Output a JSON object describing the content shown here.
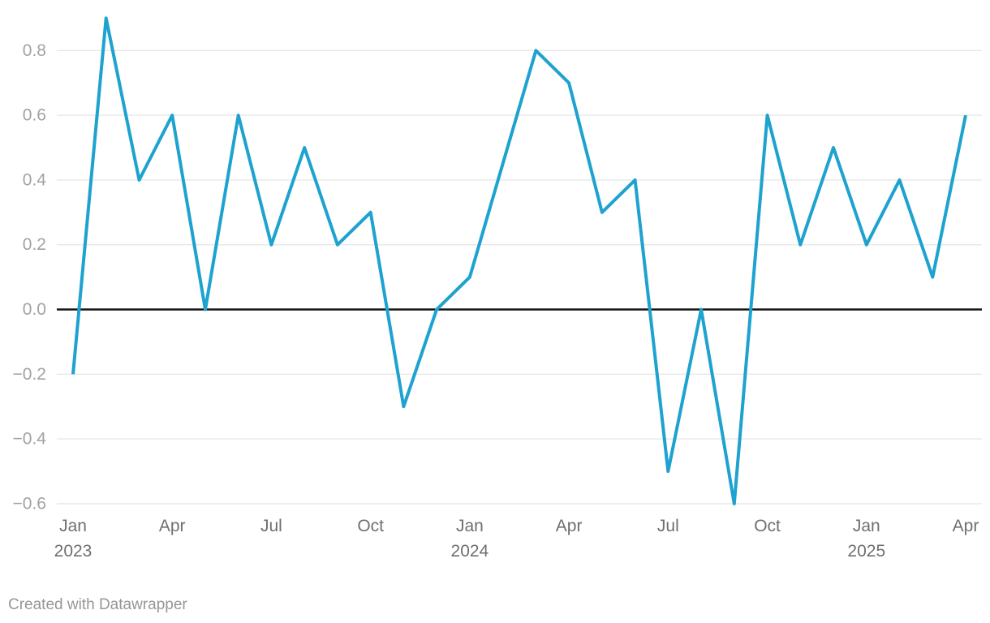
{
  "chart_data": {
    "type": "line",
    "x": [
      "Jan 2023",
      "Feb 2023",
      "Mar 2023",
      "Apr 2023",
      "May 2023",
      "Jun 2023",
      "Jul 2023",
      "Aug 2023",
      "Sep 2023",
      "Oct 2023",
      "Nov 2023",
      "Dec 2023",
      "Jan 2024",
      "Feb 2024",
      "Mar 2024",
      "Apr 2024",
      "May 2024",
      "Jun 2024",
      "Jul 2024",
      "Aug 2024",
      "Sep 2024",
      "Oct 2024",
      "Nov 2024",
      "Dec 2024",
      "Jan 2025",
      "Feb 2025",
      "Mar 2025",
      "Apr 2025"
    ],
    "series": [
      {
        "name": "value",
        "color": "#1ea2cf",
        "values": [
          -0.2,
          0.9,
          0.4,
          0.6,
          0.0,
          0.6,
          0.2,
          0.5,
          0.2,
          0.3,
          -0.3,
          0.0,
          0.1,
          0.45,
          0.8,
          0.7,
          0.3,
          0.4,
          -0.5,
          0.0,
          -0.6,
          0.6,
          0.2,
          0.5,
          0.2,
          0.4,
          0.1,
          0.6
        ]
      }
    ],
    "title": "",
    "xlabel": "",
    "ylabel": "",
    "ylim": [
      -0.7,
      0.95
    ],
    "grid": true,
    "legend_position": "none",
    "baseline": 0.0,
    "yticks": [
      0.8,
      0.6,
      0.4,
      0.2,
      0.0,
      -0.2,
      -0.4,
      -0.6
    ],
    "ytick_labels": [
      "0.8",
      "0.6",
      "0.4",
      "0.2",
      "0.0",
      "−0.2",
      "−0.4",
      "−0.6"
    ],
    "xticks": [
      {
        "index": 0,
        "month": "Jan",
        "year": "2023"
      },
      {
        "index": 3,
        "month": "Apr",
        "year": ""
      },
      {
        "index": 6,
        "month": "Jul",
        "year": ""
      },
      {
        "index": 9,
        "month": "Oct",
        "year": ""
      },
      {
        "index": 12,
        "month": "Jan",
        "year": "2024"
      },
      {
        "index": 15,
        "month": "Apr",
        "year": ""
      },
      {
        "index": 18,
        "month": "Jul",
        "year": ""
      },
      {
        "index": 21,
        "month": "Oct",
        "year": ""
      },
      {
        "index": 24,
        "month": "Jan",
        "year": "2025"
      },
      {
        "index": 27,
        "month": "Apr",
        "year": ""
      }
    ]
  },
  "footer": {
    "credit": "Created with Datawrapper"
  },
  "colors": {
    "line": "#1ea2cf",
    "grid": "#e8e8e8",
    "zero_line": "#141414",
    "ytick_text": "#a2a2a2",
    "xtick_text": "#6f6f6f",
    "credit_text": "#969696",
    "background": "#ffffff"
  }
}
